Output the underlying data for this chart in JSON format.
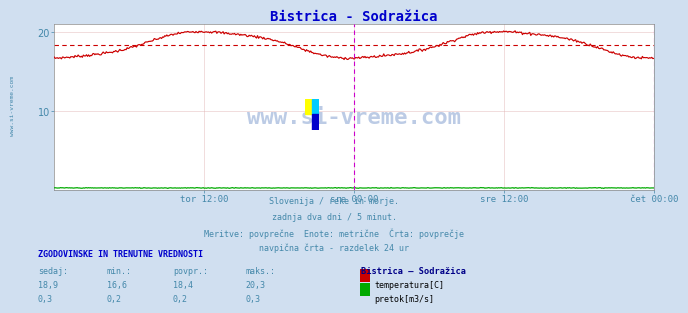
{
  "title": "Bistrica - Sodražica",
  "title_color": "#0000cc",
  "bg_color": "#d0dff0",
  "plot_bg_color": "#ffffff",
  "grid_color": "#ddaaaa",
  "xlabel_color": "#4488aa",
  "text_color": "#4488aa",
  "temp_color": "#cc0000",
  "temp_avg_color": "#cc0000",
  "flow_color": "#00aa00",
  "magenta_line_color": "#cc00cc",
  "watermark_color": "#2255aa",
  "ylim": [
    0,
    21
  ],
  "ytick_vals": [
    10,
    20
  ],
  "temp_avg": 18.4,
  "temp_min": 16.6,
  "temp_max": 20.3,
  "x_tick_labels": [
    "tor 12:00",
    "sre 00:00",
    "sre 12:00",
    "čet 00:00"
  ],
  "x_tick_positions": [
    0.25,
    0.5,
    0.75,
    1.0
  ],
  "subtitle_lines": [
    "Slovenija / reke in morje.",
    "zadnja dva dni / 5 minut.",
    "Meritve: povprečne  Enote: metrične  Črta: povprečje",
    "navpična črta - razdelek 24 ur"
  ],
  "table_header": "ZGODOVINSKE IN TRENUTNE VREDNOSTI",
  "table_cols": [
    "sedaj:",
    "min.:",
    "povpr.:",
    "maks.:"
  ],
  "table_temp": [
    "18,9",
    "16,6",
    "18,4",
    "20,3"
  ],
  "table_flow": [
    "0,3",
    "0,2",
    "0,2",
    "0,3"
  ],
  "legend_title": "Bistrica – Sodražica",
  "legend_items": [
    "temperatura[C]",
    "pretok[m3/s]"
  ],
  "legend_colors": [
    "#cc0000",
    "#00aa00"
  ],
  "watermark": "www.si-vreme.com",
  "sidebar_text": "www.si-vreme.com",
  "logo_colors": [
    "#ffff00",
    "#00ccff",
    "#0000cc"
  ]
}
